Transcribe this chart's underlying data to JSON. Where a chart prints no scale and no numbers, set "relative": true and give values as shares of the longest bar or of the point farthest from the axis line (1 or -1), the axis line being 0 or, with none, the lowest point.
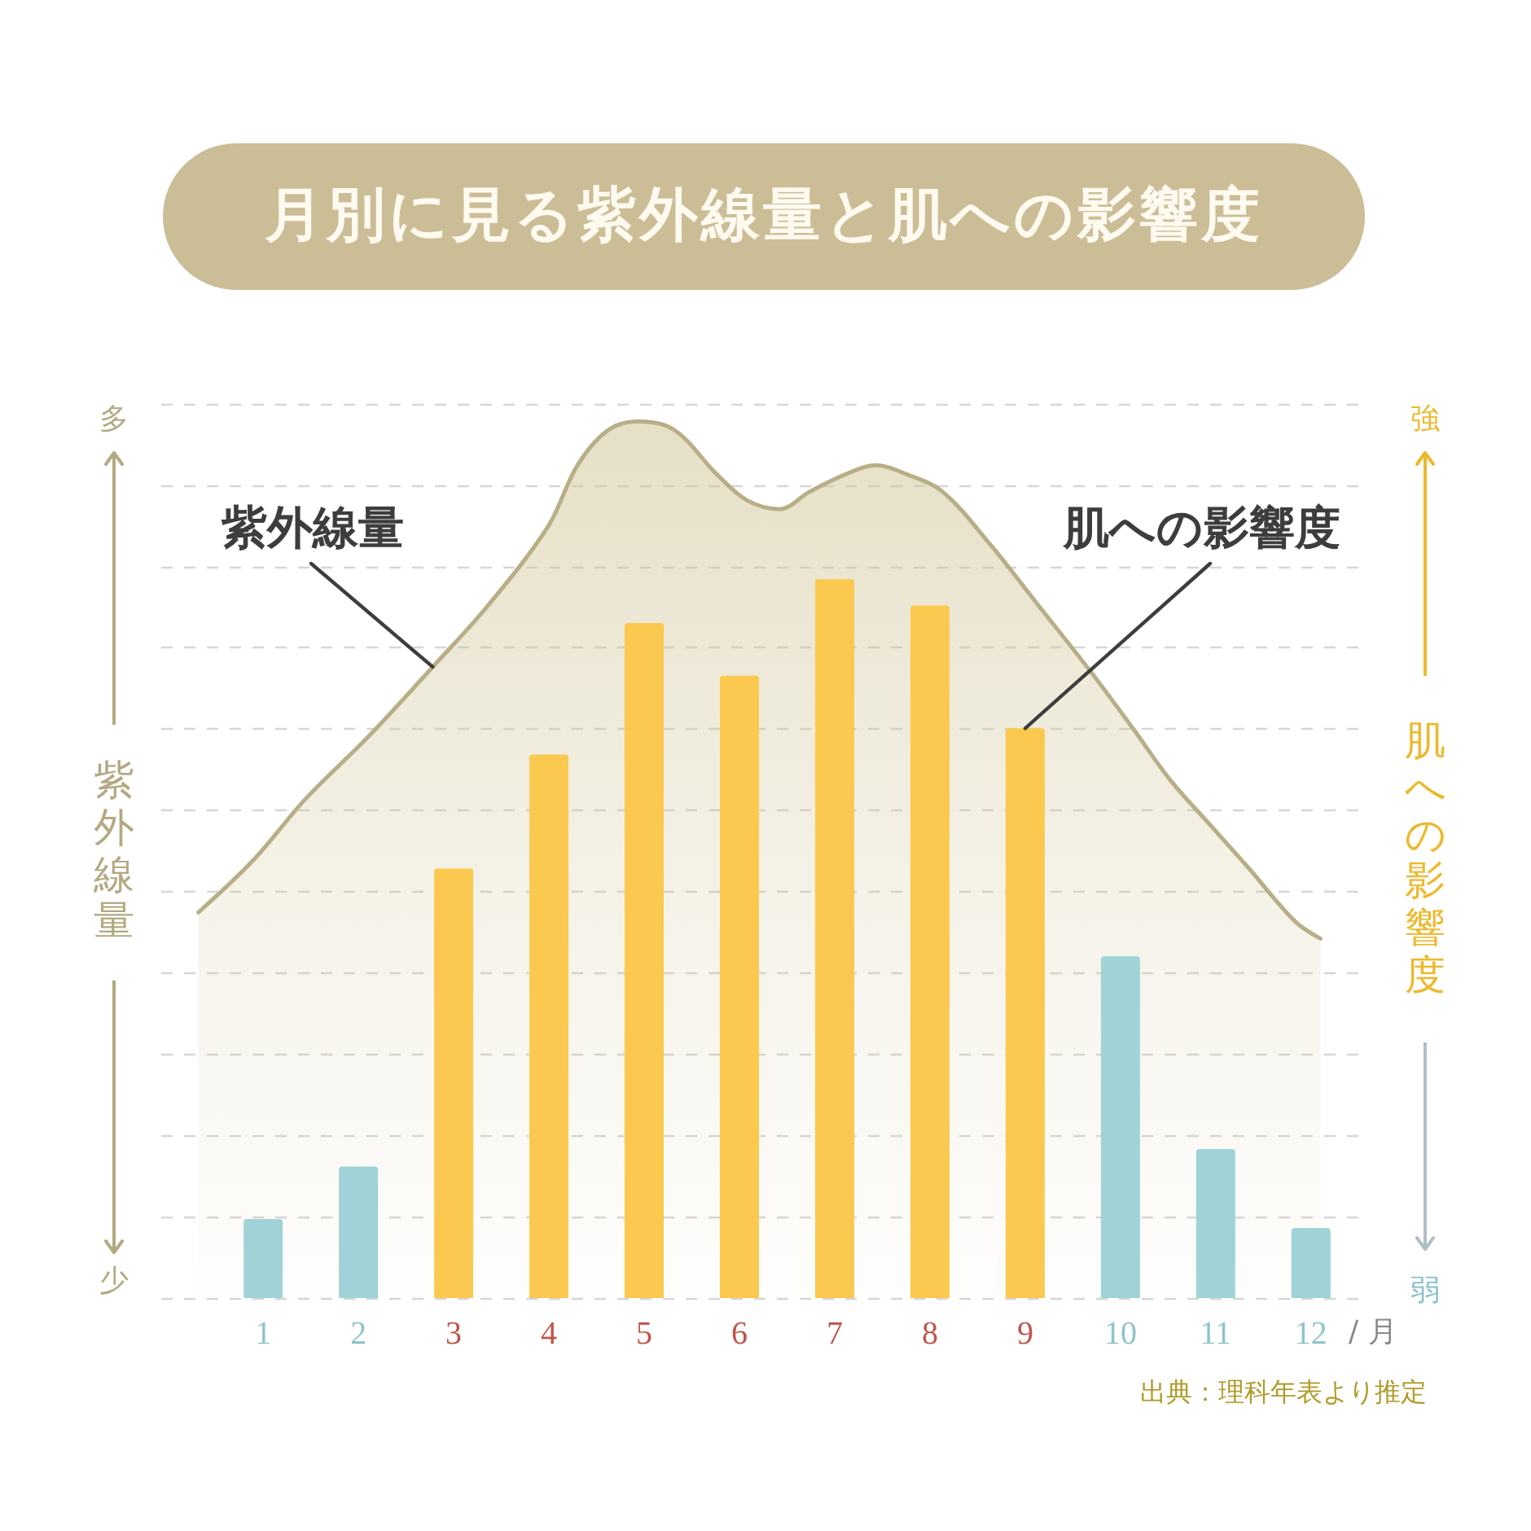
{
  "chart_data": {
    "type": "bar",
    "title": "月別に見る紫外線量と肌への影響度",
    "xlabel": "/ 月",
    "ylabel": "紫外線量",
    "y2label": "肌への影響度",
    "annotations": [
      "多",
      "少",
      "強",
      "弱",
      "出典：理科年表より推定"
    ],
    "x": [
      1,
      2,
      3,
      4,
      5,
      6,
      7,
      8,
      9,
      10,
      11,
      12
    ],
    "xlim": [
      -0.07,
      12.6
    ],
    "xticks": [
      1,
      2,
      3,
      4,
      5,
      6,
      7,
      8,
      9,
      10,
      11,
      12
    ],
    "relative": true,
    "grid": "y",
    "series": [
      {
        "name": "紫外線量",
        "type": "area",
        "color": "#b8ae87",
        "x": [
          0.32,
          0.9,
          1.45,
          2.1,
          2.78,
          3.36,
          3.99,
          4.3,
          4.62,
          4.94,
          5.32,
          5.76,
          6.08,
          6.42,
          6.74,
          7.12,
          7.43,
          7.75,
          8.13,
          8.63,
          9.14,
          9.72,
          10.13,
          10.53,
          10.94,
          11.35,
          11.83,
          12.1
        ],
        "values": [
          0.44,
          0.5,
          0.57,
          0.64,
          0.72,
          0.79,
          0.88,
          0.95,
          0.99,
          1,
          0.99,
          0.94,
          0.91,
          0.9,
          0.92,
          0.94,
          0.95,
          0.94,
          0.92,
          0.86,
          0.79,
          0.71,
          0.65,
          0.59,
          0.54,
          0.49,
          0.43,
          0.41
        ]
      },
      {
        "name": "肌への影響度",
        "colors": [
          "#9fd3d7",
          "#9fd3d7",
          "#fbc94f",
          "#fbc94f",
          "#fbc94f",
          "#fbc94f",
          "#fbc94f",
          "#fbc94f",
          "#fbc94f",
          "#9fd3d7",
          "#9fd3d7",
          "#9fd3d7"
        ],
        "values": [
          0.09,
          0.15,
          0.49,
          0.62,
          0.77,
          0.71,
          0.82,
          0.79,
          0.65,
          0.39,
          0.17,
          0.08
        ]
      }
    ]
  }
}
